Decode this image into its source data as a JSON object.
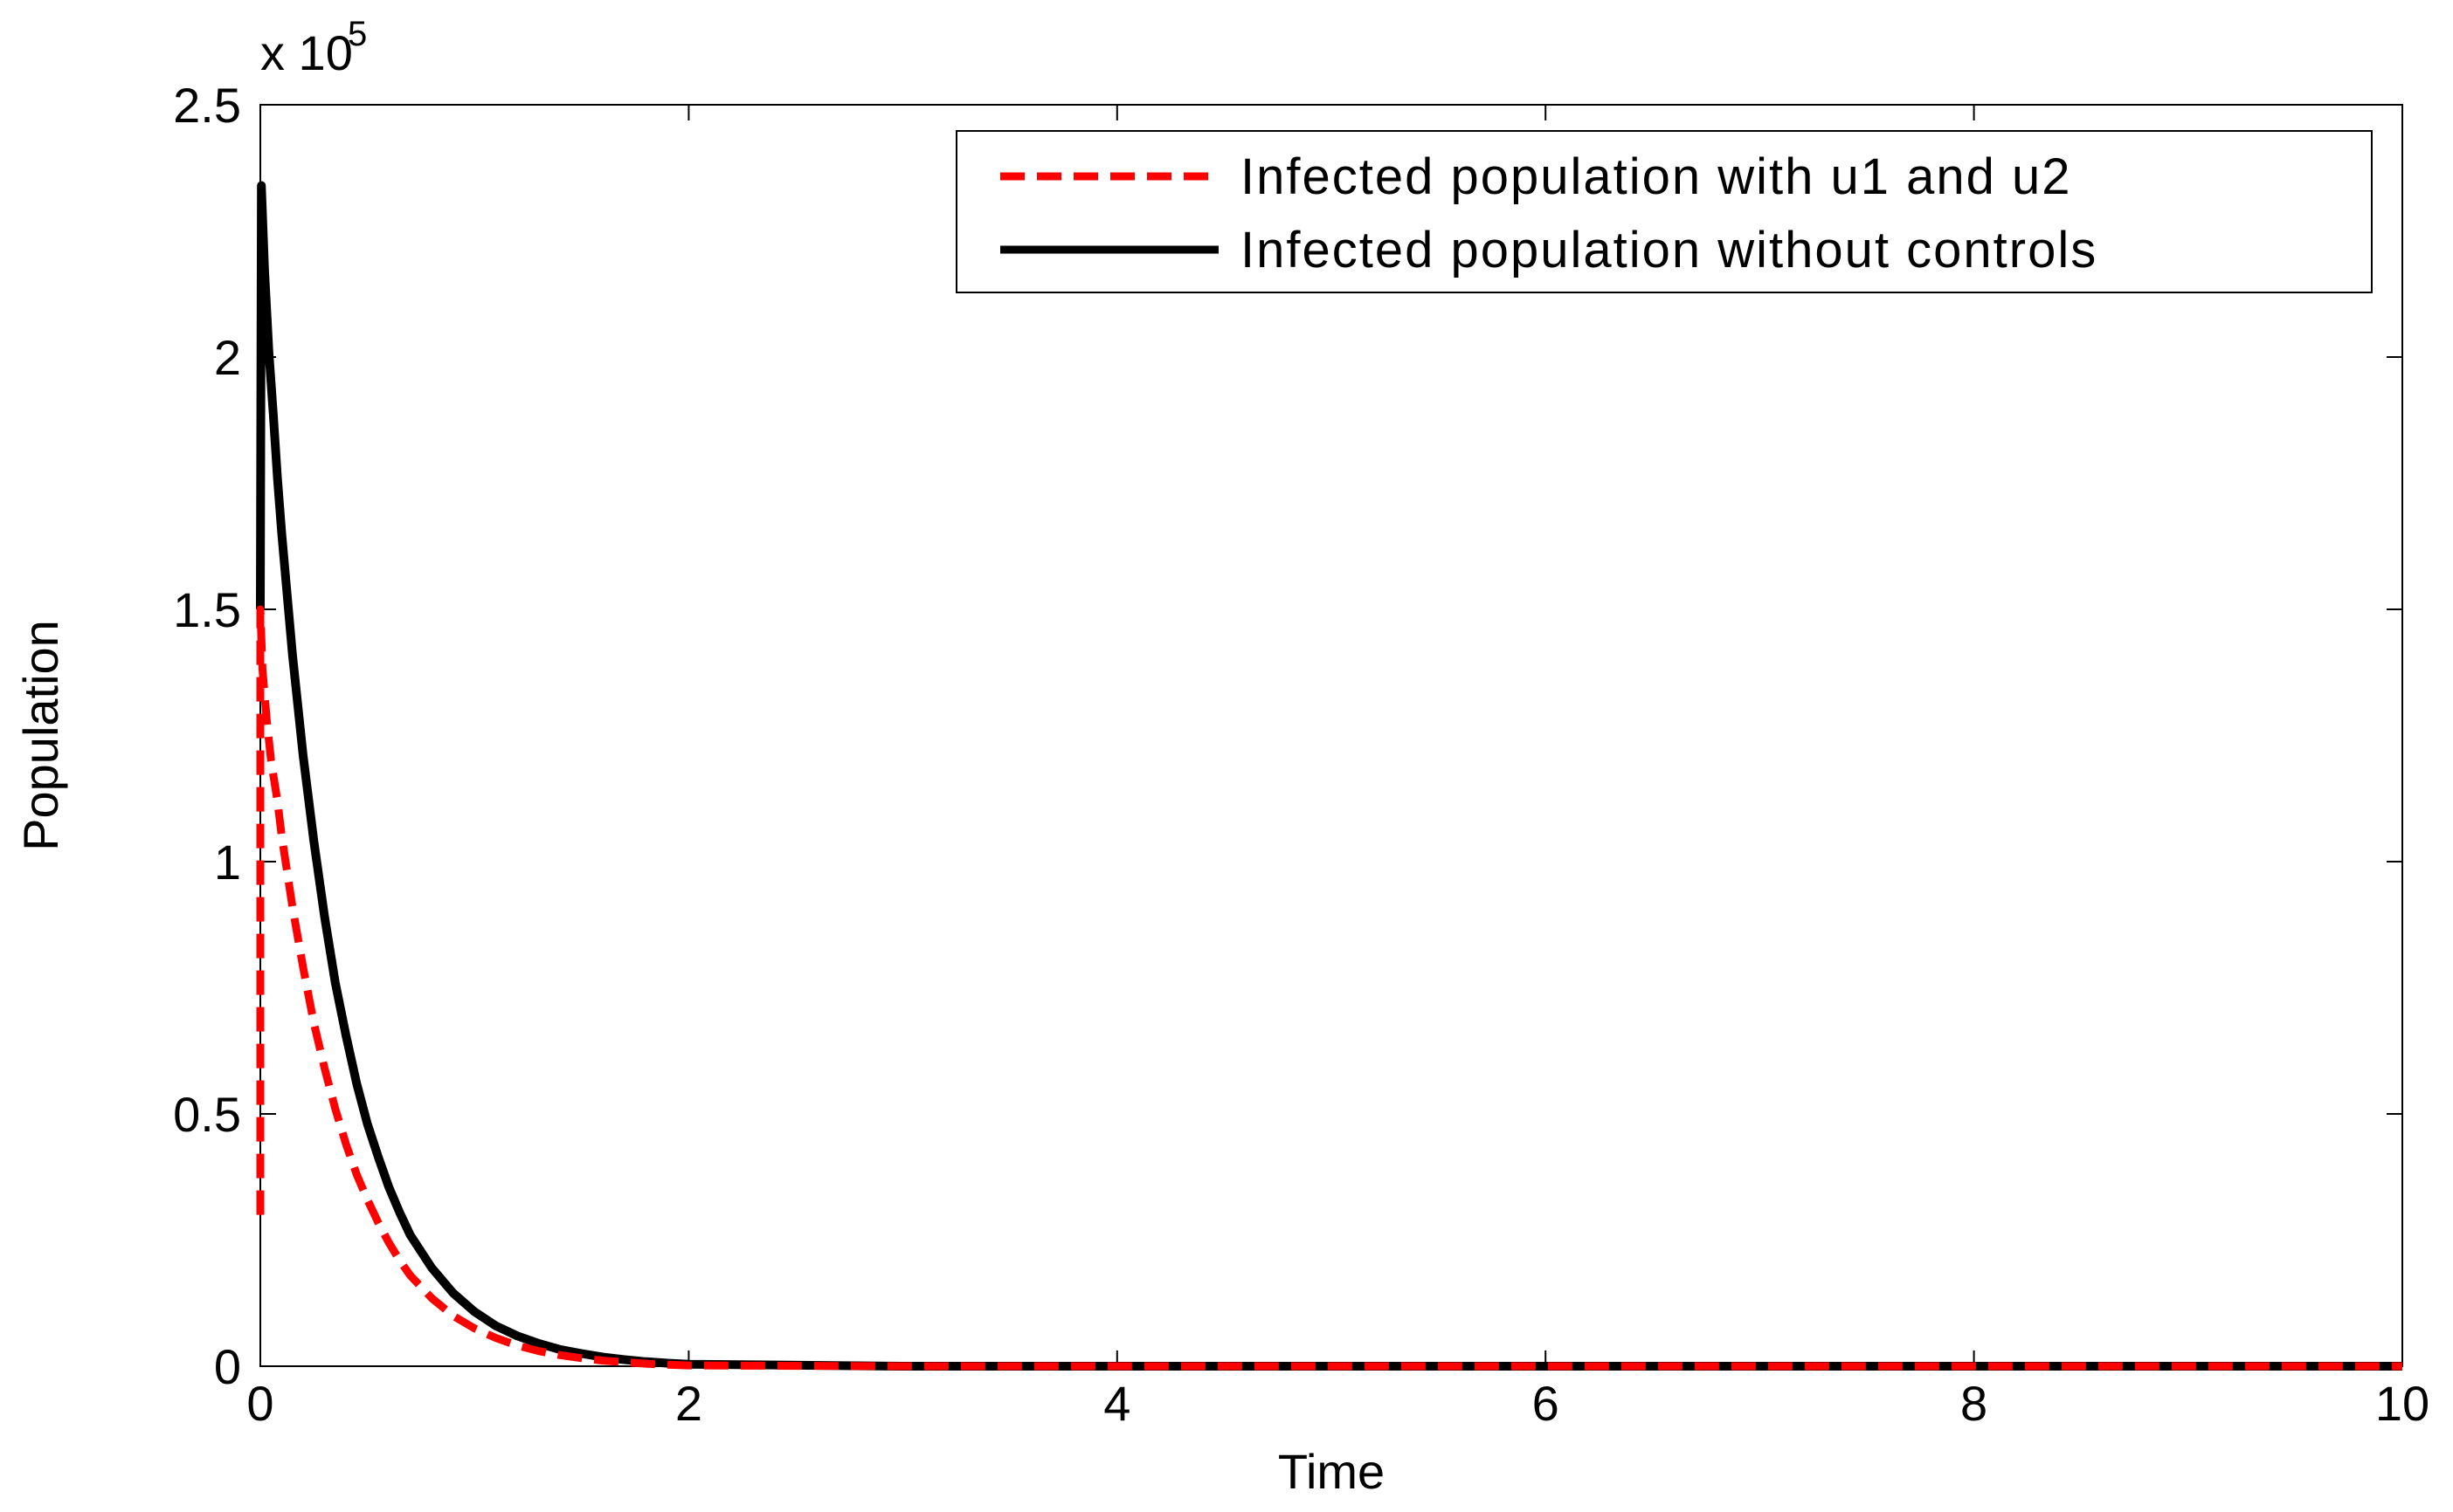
{
  "chart_data": {
    "type": "line",
    "title": "",
    "xlabel": "Time",
    "ylabel": "Population",
    "xlim": [
      0,
      10
    ],
    "ylim": [
      0,
      250000
    ],
    "y_scale_label": {
      "base": "x 10",
      "exponent": "5"
    },
    "x_ticks": [
      0,
      2,
      4,
      6,
      8,
      10
    ],
    "x_tick_labels": [
      "0",
      "2",
      "4",
      "6",
      "8",
      "10"
    ],
    "y_ticks": [
      0,
      50000,
      100000,
      150000,
      200000,
      250000
    ],
    "y_tick_labels": [
      "0",
      "0.5",
      "1",
      "1.5",
      "2",
      "2.5"
    ],
    "grid": false,
    "legend_position": "top-right",
    "series": [
      {
        "name": "Infected population with u1 and u2",
        "color": "#ff0000",
        "style": "dashed",
        "x": [
          0,
          0,
          0.01,
          0.03,
          0.05,
          0.08,
          0.1,
          0.15,
          0.2,
          0.25,
          0.3,
          0.35,
          0.4,
          0.45,
          0.5,
          0.55,
          0.6,
          0.65,
          0.7,
          0.8,
          0.9,
          1.0,
          1.1,
          1.2,
          1.3,
          1.4,
          1.5,
          1.6,
          1.7,
          1.8,
          1.9,
          2.0,
          3.0,
          4.0,
          5.0,
          6.0,
          7.0,
          8.0,
          9.0,
          10.0
        ],
        "y": [
          30000,
          150000,
          138000,
          128000,
          120000,
          112000,
          105000,
          91000,
          79000,
          68000,
          59000,
          51000,
          44000,
          38000,
          33000,
          28500,
          24500,
          21000,
          18000,
          13500,
          10000,
          7500,
          5600,
          4100,
          3000,
          2200,
          1600,
          1100,
          800,
          500,
          300,
          150,
          0,
          0,
          0,
          0,
          0,
          0,
          0,
          0
        ]
      },
      {
        "name": "Infected population without controls",
        "color": "#000000",
        "style": "solid",
        "x": [
          0,
          0.005,
          0.02,
          0.04,
          0.06,
          0.08,
          0.1,
          0.15,
          0.2,
          0.25,
          0.3,
          0.35,
          0.4,
          0.45,
          0.5,
          0.55,
          0.6,
          0.65,
          0.7,
          0.8,
          0.9,
          1.0,
          1.1,
          1.2,
          1.3,
          1.4,
          1.5,
          1.6,
          1.7,
          1.8,
          1.9,
          2.0,
          3.0,
          4.0,
          5.0,
          6.0,
          7.0,
          8.0,
          9.0,
          10.0
        ],
        "y": [
          150000,
          234000,
          217000,
          201000,
          189000,
          176000,
          165000,
          141000,
          121000,
          104000,
          89000,
          76000,
          65500,
          56000,
          48000,
          41500,
          35500,
          30500,
          26000,
          19500,
          14500,
          10800,
          8000,
          6000,
          4500,
          3300,
          2500,
          1800,
          1300,
          900,
          600,
          400,
          0,
          0,
          0,
          0,
          0,
          0,
          0,
          0
        ]
      }
    ]
  }
}
